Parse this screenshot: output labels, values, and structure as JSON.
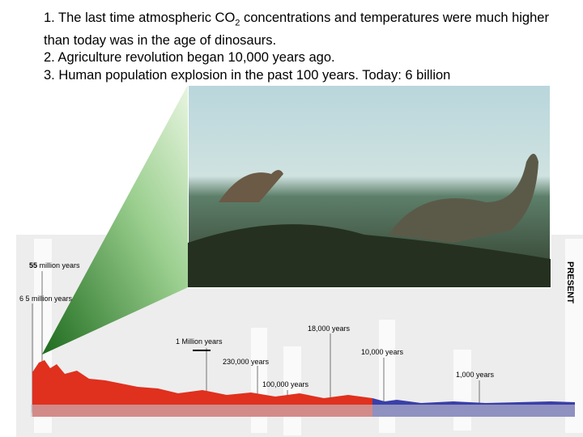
{
  "slide": {
    "points": [
      {
        "before": "1. The last time atmospheric CO",
        "sub": "2",
        "after": " concentrations and temperatures were  much higher than today was in the age of dinosaurs."
      },
      {
        "text": "2. Agriculture revolution began 10,000 years ago."
      },
      {
        "text": "3. Human population explosion in the past 100 years. Today: 6 billion"
      }
    ],
    "timeline": {
      "labels": {
        "mya55": {
          "number": "55",
          "rest": " million years"
        },
        "mya65": "6 5 million years",
        "ky18": "18,000 years",
        "my1": "1 Million years",
        "ky10": "10,000 years",
        "ky230": "230,000 years",
        "ky1": "1,000  years",
        "ky100": "100,000 years",
        "present": "PRESENT"
      }
    }
  }
}
